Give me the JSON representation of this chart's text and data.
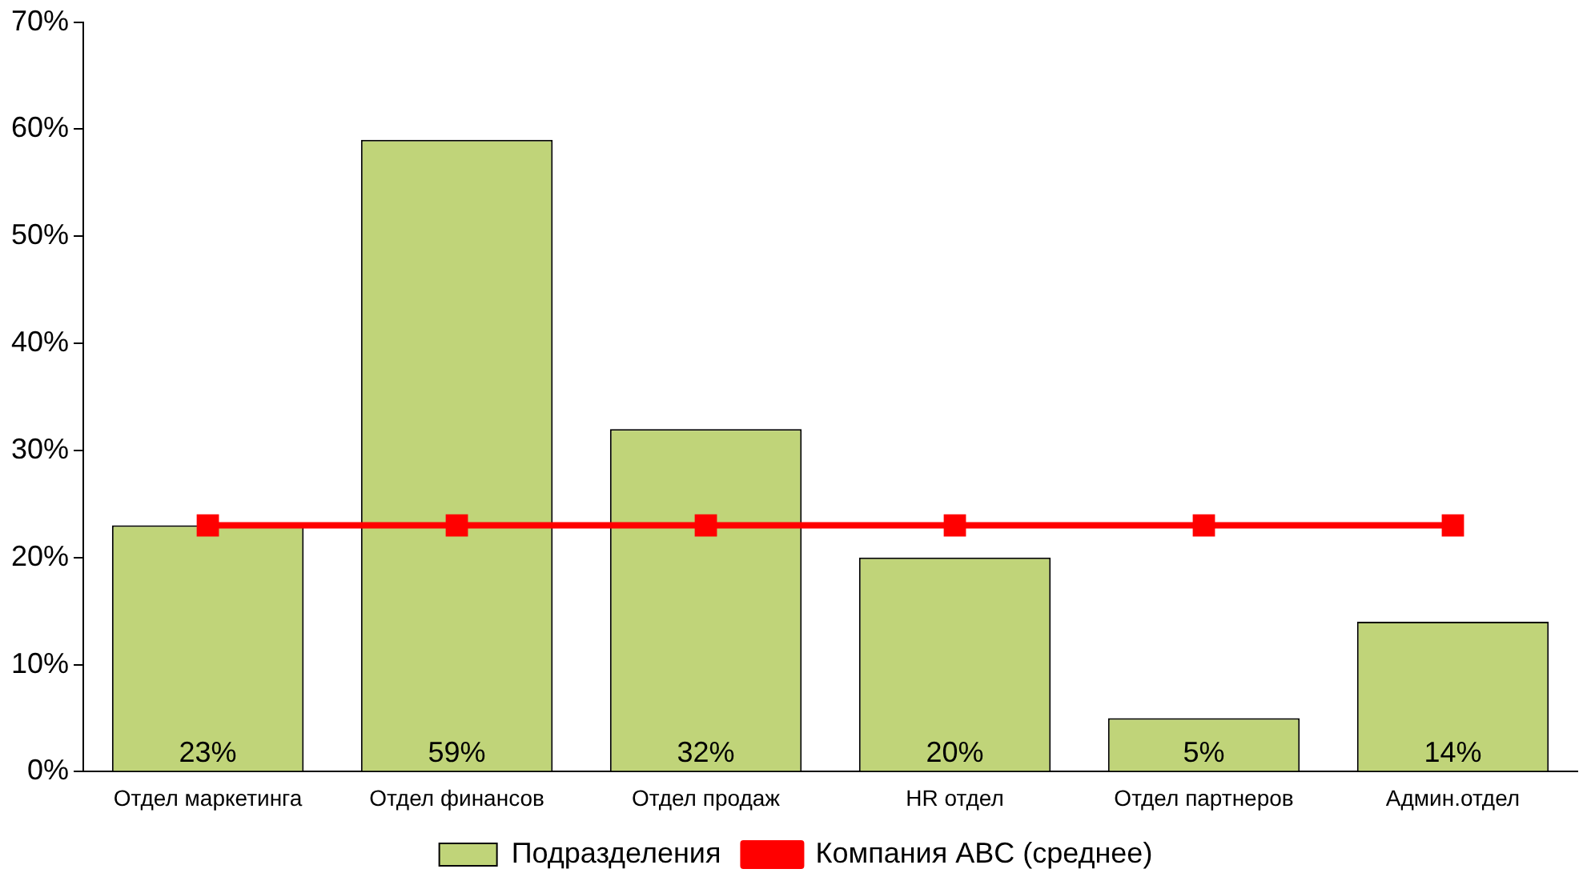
{
  "chart_data": {
    "type": "bar",
    "categories": [
      "Отдел маркетинга",
      "Отдел финансов",
      "Отдел продаж",
      "HR отдел",
      "Отдел партнеров",
      "Админ.отдел"
    ],
    "series": [
      {
        "name": "Подразделения",
        "color": "#c0d479",
        "values": [
          23,
          59,
          32,
          20,
          5,
          14
        ],
        "value_labels": [
          "23%",
          "59%",
          "32%",
          "20%",
          "5%",
          "14%"
        ]
      },
      {
        "name": "Компания ABC (среднее)",
        "type": "line",
        "color": "#ff0000",
        "values": [
          23,
          23,
          23,
          23,
          23,
          23
        ],
        "marker": "square"
      }
    ],
    "ylim": [
      0,
      70
    ],
    "yticks": [
      {
        "value": 0,
        "label": "0%"
      },
      {
        "value": 10,
        "label": "10%"
      },
      {
        "value": 20,
        "label": "20%"
      },
      {
        "value": 30,
        "label": "30%"
      },
      {
        "value": 40,
        "label": "40%"
      },
      {
        "value": 50,
        "label": "50%"
      },
      {
        "value": 60,
        "label": "60%"
      },
      {
        "value": 70,
        "label": "70%"
      }
    ],
    "grid": false,
    "legend": "bottom"
  }
}
